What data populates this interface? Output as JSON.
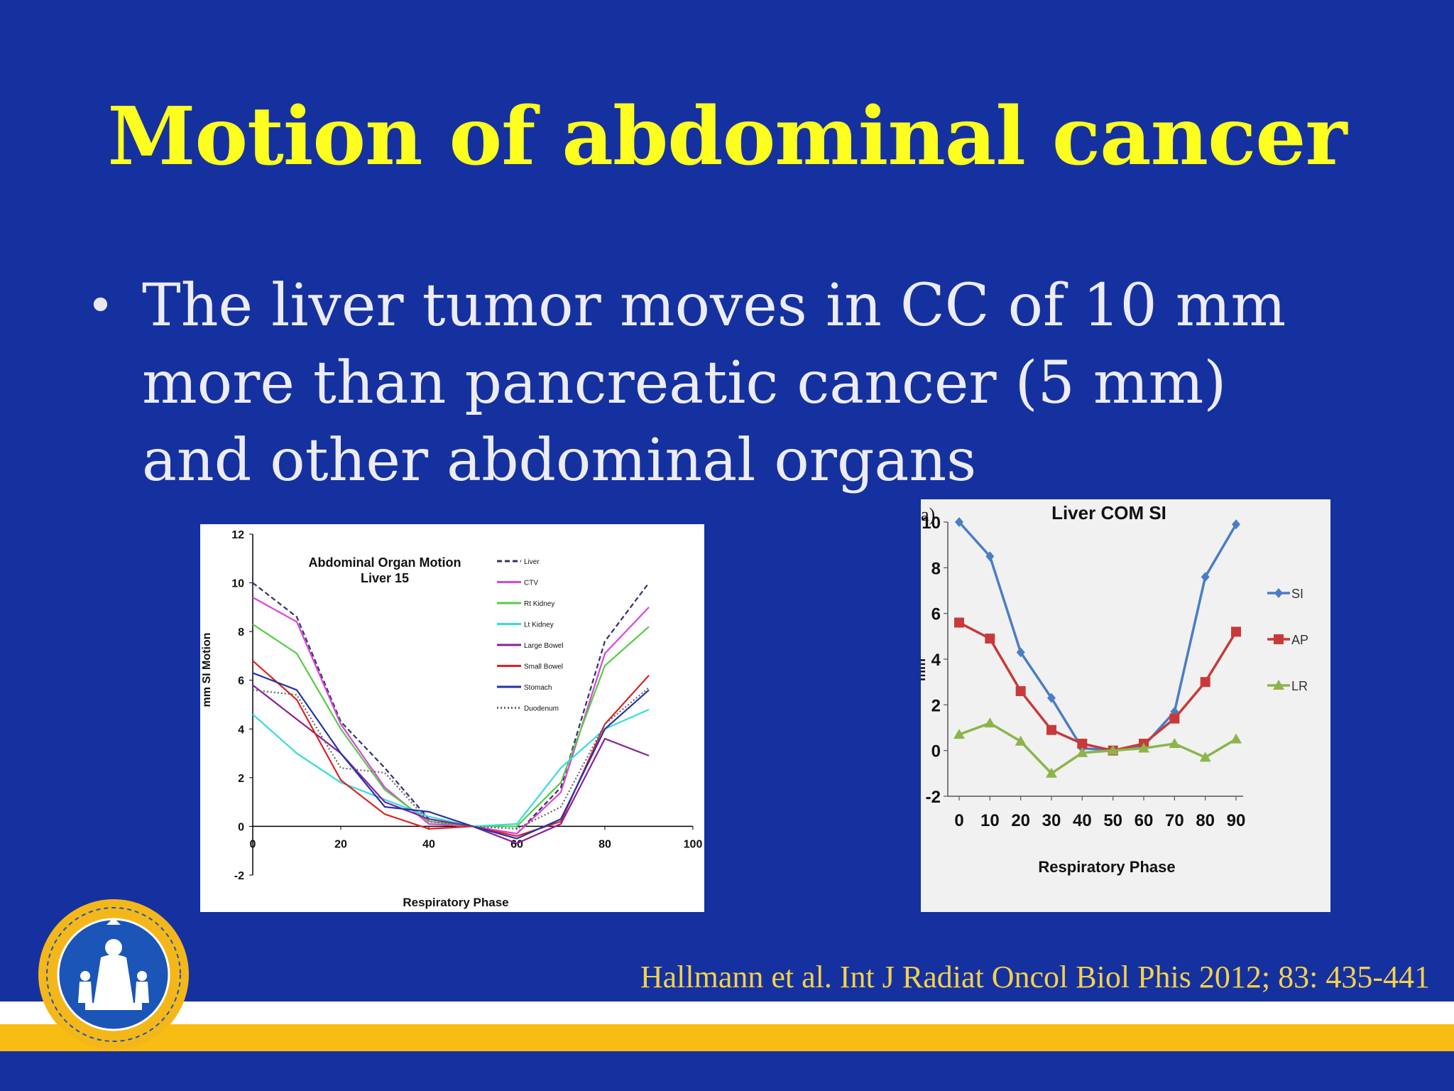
{
  "slide": {
    "title": "Motion of abdominal cancer",
    "bullet": "The liver tumor moves in CC of 10 mm more than pancreatic cancer (5 mm) and other abdominal organs",
    "citation": "Hallmann et al. Int  J Radiat Oncol Biol Phis 2012; 83: 435-441",
    "colors": {
      "background": "#1531a0",
      "title": "#ffff1f",
      "citation": "#f5d14a",
      "stripe_yellow": "#f8bd12"
    },
    "logo": {
      "icon": "university-seal-icon"
    }
  },
  "chart_data": [
    {
      "type": "line",
      "title": "Abdominal Organ Motion",
      "subtitle": "Liver 15",
      "xlabel": "Respiratory Phase",
      "ylabel": "mm SI Motion",
      "xlim": [
        0,
        100
      ],
      "ylim": [
        -2,
        12
      ],
      "x_ticks": [
        0,
        20,
        40,
        60,
        80,
        100
      ],
      "y_ticks": [
        -2,
        0,
        2,
        4,
        6,
        8,
        10,
        12
      ],
      "legend": "top-right",
      "x": [
        0,
        10,
        20,
        30,
        40,
        50,
        60,
        70,
        80,
        90
      ],
      "series": [
        {
          "name": "Liver",
          "color": "#333366",
          "dash": "dashed",
          "values": [
            10,
            8.6,
            4.3,
            2.4,
            0.3,
            0,
            -0.3,
            1.6,
            7.6,
            10
          ]
        },
        {
          "name": "CTV",
          "color": "#dd44dd",
          "dash": "solid",
          "values": [
            9.4,
            8.4,
            4.2,
            1.6,
            0.1,
            0,
            -0.3,
            1.4,
            7.1,
            9
          ]
        },
        {
          "name": "Rt Kidney",
          "color": "#55cc44",
          "dash": "solid",
          "values": [
            8.3,
            7.1,
            4,
            1.5,
            0.2,
            0,
            0,
            1.8,
            6.6,
            8.2
          ]
        },
        {
          "name": "Lt Kidney",
          "color": "#33dddd",
          "dash": "solid",
          "values": [
            4.6,
            3,
            1.8,
            1.1,
            0.4,
            0,
            0.1,
            2.4,
            4,
            4.8
          ]
        },
        {
          "name": "Large Bowel",
          "color": "#882299",
          "dash": "solid",
          "values": [
            5.8,
            4.4,
            3,
            1,
            0.3,
            0,
            -0.7,
            0.1,
            3.6,
            2.9
          ]
        },
        {
          "name": "Small Bowel",
          "color": "#dd2222",
          "dash": "solid",
          "values": [
            6.8,
            5.2,
            1.9,
            0.5,
            -0.1,
            0,
            -0.4,
            0.2,
            4.2,
            6.2
          ]
        },
        {
          "name": "Stomach",
          "color": "#2233aa",
          "dash": "solid",
          "values": [
            6.3,
            5.6,
            3,
            0.8,
            0.6,
            0,
            -0.5,
            0.3,
            4,
            5.6
          ]
        },
        {
          "name": "Duodenum",
          "color": "#666666",
          "dash": "dotted",
          "values": [
            5.6,
            5.4,
            2.4,
            2.2,
            0.2,
            0,
            -0.1,
            0.8,
            4.2,
            5.7
          ]
        }
      ]
    },
    {
      "type": "line",
      "title": "Liver COM SI",
      "panel_label": "a)",
      "xlabel": "Respiratory Phase",
      "ylabel": "mm",
      "xlim": [
        0,
        90
      ],
      "ylim": [
        -2,
        10
      ],
      "x_ticks": [
        0,
        10,
        20,
        30,
        40,
        50,
        60,
        70,
        80,
        90
      ],
      "y_ticks": [
        -2,
        0,
        2,
        4,
        6,
        8,
        10
      ],
      "legend": "right",
      "x": [
        0,
        10,
        20,
        30,
        40,
        50,
        60,
        70,
        80,
        90
      ],
      "series": [
        {
          "name": "SI",
          "color": "#4a7ec4",
          "marker": "diamond",
          "values": [
            10,
            8.5,
            4.3,
            2.3,
            0.1,
            0,
            0.2,
            1.7,
            7.6,
            9.9
          ]
        },
        {
          "name": "AP",
          "color": "#c83a3a",
          "marker": "square",
          "values": [
            5.6,
            4.9,
            2.6,
            0.9,
            0.3,
            0,
            0.3,
            1.4,
            3,
            5.2
          ]
        },
        {
          "name": "LR",
          "color": "#8db44a",
          "marker": "triangle",
          "values": [
            0.7,
            1.2,
            0.4,
            -1,
            -0.1,
            0,
            0.1,
            0.3,
            -0.3,
            0.5
          ]
        }
      ]
    }
  ]
}
